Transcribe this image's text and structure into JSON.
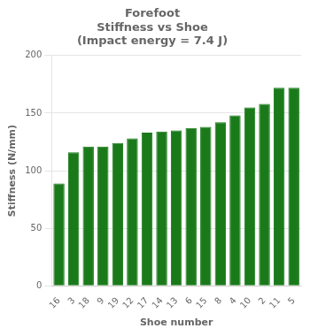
{
  "chart_data": {
    "type": "bar",
    "title": "Forefoot\nStiffness vs Shoe\n(Impact energy = 7.4 J)",
    "xlabel": "Shoe number",
    "ylabel": "Stiffness (N/mm)",
    "categories": [
      "16",
      "3",
      "18",
      "9",
      "19",
      "12",
      "17",
      "14",
      "13",
      "6",
      "15",
      "8",
      "4",
      "10",
      "2",
      "11",
      "5"
    ],
    "values": [
      89,
      116,
      121,
      121,
      124,
      128,
      133,
      134,
      135,
      137,
      138,
      142,
      148,
      155,
      158,
      172,
      172
    ],
    "color": "#1a7a1a",
    "ylim": [
      0,
      200
    ],
    "yticks": [
      0,
      50,
      100,
      150,
      200
    ],
    "grid": true
  }
}
